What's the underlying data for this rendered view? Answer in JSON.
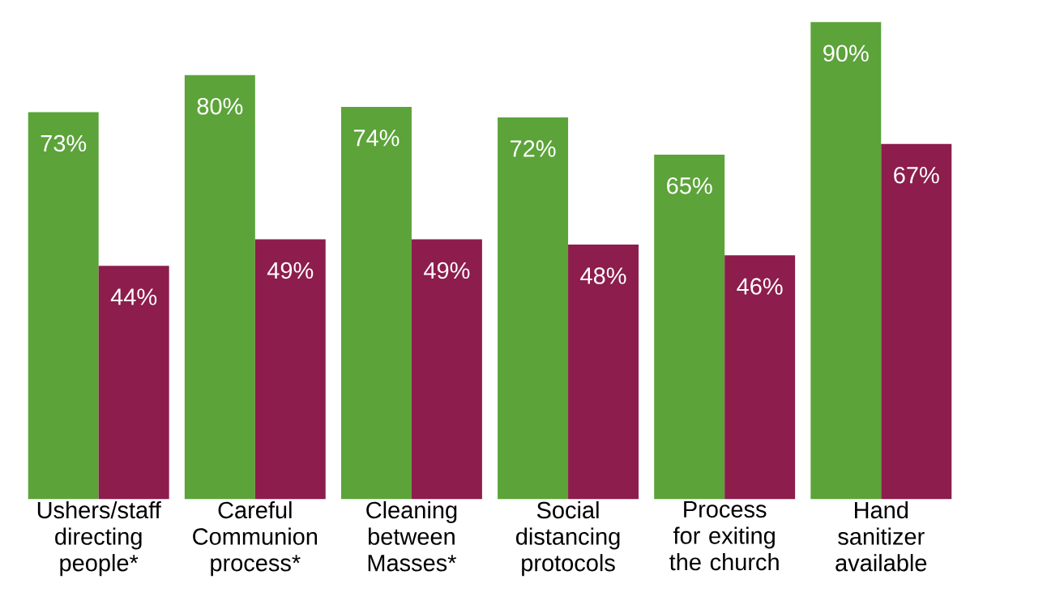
{
  "chart_data": {
    "type": "bar",
    "categories": [
      "Ushers/staff directing people*",
      "Careful Communion process*",
      "Cleaning between Masses*",
      "Social distancing protocols",
      "Process for exiting the church",
      "Hand sanitizer available"
    ],
    "series": [
      {
        "color": "#5ca33a",
        "values": [
          73,
          80,
          74,
          72,
          65,
          90
        ],
        "value_labels": [
          "73%",
          "80%",
          "74%",
          "72%",
          "65%",
          "90%"
        ]
      },
      {
        "color": "#8c1d4c",
        "values": [
          44,
          49,
          49,
          48,
          46,
          67
        ],
        "value_labels": [
          "44%",
          "49%",
          "49%",
          "48%",
          "46%",
          "67%"
        ]
      }
    ]
  }
}
